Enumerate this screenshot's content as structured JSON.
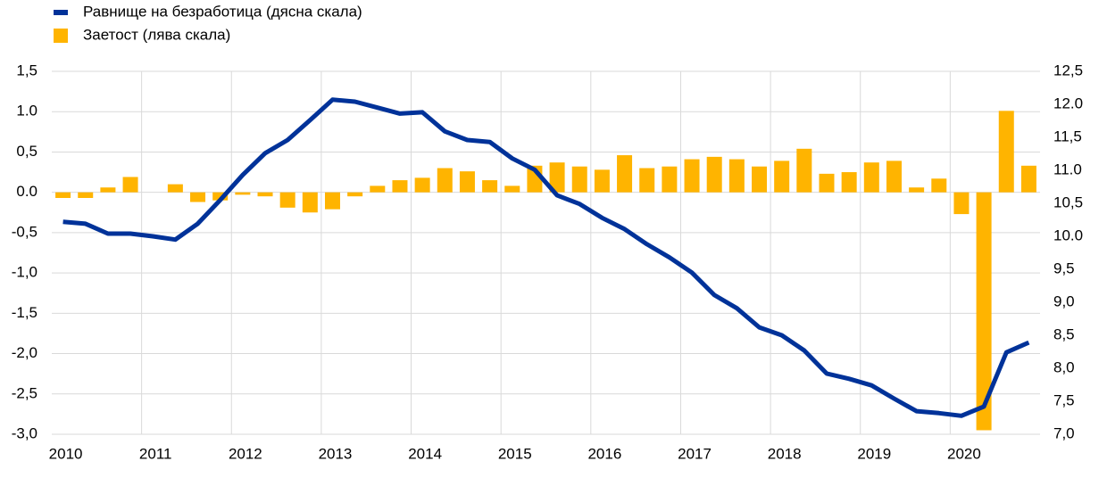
{
  "chart_data": {
    "type": "bar_line",
    "categories": [
      "2010",
      null,
      null,
      null,
      "2011",
      null,
      null,
      null,
      "2012",
      null,
      null,
      null,
      "2013",
      null,
      null,
      null,
      "2014",
      null,
      null,
      null,
      "2015",
      null,
      null,
      null,
      "2016",
      null,
      null,
      null,
      "2017",
      null,
      null,
      null,
      "2018",
      null,
      null,
      null,
      "2019",
      null,
      null,
      null,
      "2020",
      null,
      null,
      null
    ],
    "series": [
      {
        "name": "Равнище на безработица (дясна скала)",
        "color": "#003299",
        "type": "line",
        "axis": "y2",
        "values": [
          10.22,
          10.19,
          10.04,
          10.04,
          10.0,
          9.95,
          10.19,
          10.55,
          10.93,
          11.26,
          11.46,
          11.76,
          12.07,
          12.04,
          11.95,
          11.86,
          11.88,
          11.59,
          11.46,
          11.43,
          11.18,
          11.01,
          10.62,
          10.49,
          10.28,
          10.11,
          9.88,
          9.68,
          9.45,
          9.11,
          8.91,
          8.62,
          8.5,
          8.27,
          7.92,
          7.84,
          7.74,
          7.54,
          7.35,
          7.32,
          7.28,
          7.42,
          8.24,
          8.39
        ]
      },
      {
        "name": "Заетост (лява скала)",
        "color": "#ffb400",
        "type": "bar",
        "values": [
          -0.07,
          -0.07,
          0.06,
          0.19,
          0.0,
          0.1,
          -0.12,
          -0.1,
          -0.03,
          -0.05,
          -0.19,
          -0.25,
          -0.21,
          -0.05,
          0.08,
          0.15,
          0.18,
          0.3,
          0.26,
          0.15,
          0.08,
          0.33,
          0.37,
          0.32,
          0.28,
          0.46,
          0.3,
          0.32,
          0.41,
          0.44,
          0.41,
          0.32,
          0.39,
          0.54,
          0.23,
          0.25,
          0.37,
          0.39,
          0.06,
          0.17,
          -0.27,
          -2.95,
          1.01,
          0.33
        ]
      }
    ],
    "ylim": [
      -3.0,
      1.5
    ],
    "yticks": [
      {
        "value": 1.5,
        "label": "1,5"
      },
      {
        "value": 1.0,
        "label": "1.0"
      },
      {
        "value": 0.5,
        "label": "0,5"
      },
      {
        "value": 0.0,
        "label": "0.0"
      },
      {
        "value": -0.5,
        "label": "-0,5"
      },
      {
        "value": -1.0,
        "label": "-1,0"
      },
      {
        "value": -1.5,
        "label": "-1,5"
      },
      {
        "value": -2.0,
        "label": "-2,0"
      },
      {
        "value": -2.5,
        "label": "-2,5"
      },
      {
        "value": -3.0,
        "label": "-3,0"
      }
    ],
    "y2lim": [
      7.0,
      12.5
    ],
    "y2ticks": [
      {
        "value": 12.5,
        "label": "12,5"
      },
      {
        "value": 12.0,
        "label": "12.0"
      },
      {
        "value": 11.5,
        "label": "11,5"
      },
      {
        "value": 11.0,
        "label": "11.0"
      },
      {
        "value": 10.5,
        "label": "10,5"
      },
      {
        "value": 10.0,
        "label": "10.0"
      },
      {
        "value": 9.5,
        "label": "9,5"
      },
      {
        "value": 9.0,
        "label": "9,0"
      },
      {
        "value": 8.5,
        "label": "8,5"
      },
      {
        "value": 8.0,
        "label": "8,0"
      },
      {
        "value": 7.5,
        "label": "7,5"
      },
      {
        "value": 7.0,
        "label": "7,0"
      }
    ],
    "grid": true
  }
}
